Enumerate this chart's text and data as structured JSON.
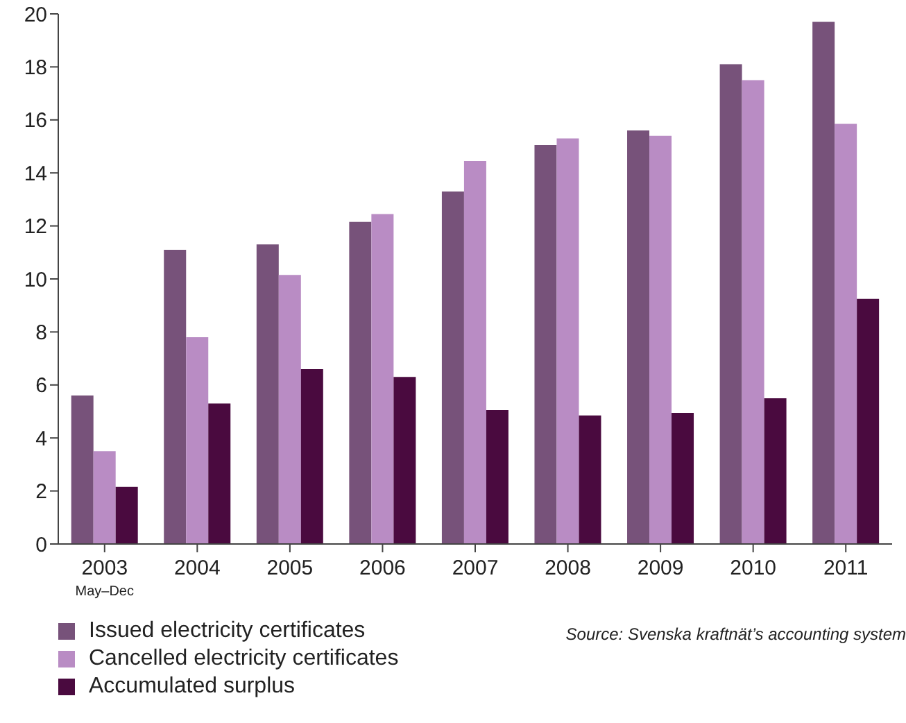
{
  "chart_data": {
    "type": "bar",
    "categories": [
      "2003\nMay–Dec",
      "2004",
      "2005",
      "2006",
      "2007",
      "2008",
      "2009",
      "2010",
      "2011"
    ],
    "series": [
      {
        "name": "Issued electricity certificates",
        "color": "#77527a",
        "values": [
          5.6,
          11.1,
          11.3,
          12.15,
          13.3,
          15.05,
          15.6,
          18.1,
          19.7
        ]
      },
      {
        "name": "Cancelled electricity certificates",
        "color": "#b98cc4",
        "values": [
          3.5,
          7.8,
          10.15,
          12.45,
          14.45,
          15.3,
          15.4,
          17.5,
          15.85
        ]
      },
      {
        "name": "Accumulated surplus",
        "color": "#4a0a3f",
        "values": [
          2.15,
          5.3,
          6.6,
          6.3,
          5.05,
          4.85,
          4.95,
          5.5,
          9.25
        ]
      }
    ],
    "ylim": [
      0,
      20
    ],
    "yticks": [
      0,
      2,
      4,
      6,
      8,
      10,
      12,
      14,
      16,
      18,
      20
    ],
    "grid": false,
    "legend": "bottom left",
    "annotations": [
      "Source: Svenska kraftnät’s accounting system"
    ]
  }
}
